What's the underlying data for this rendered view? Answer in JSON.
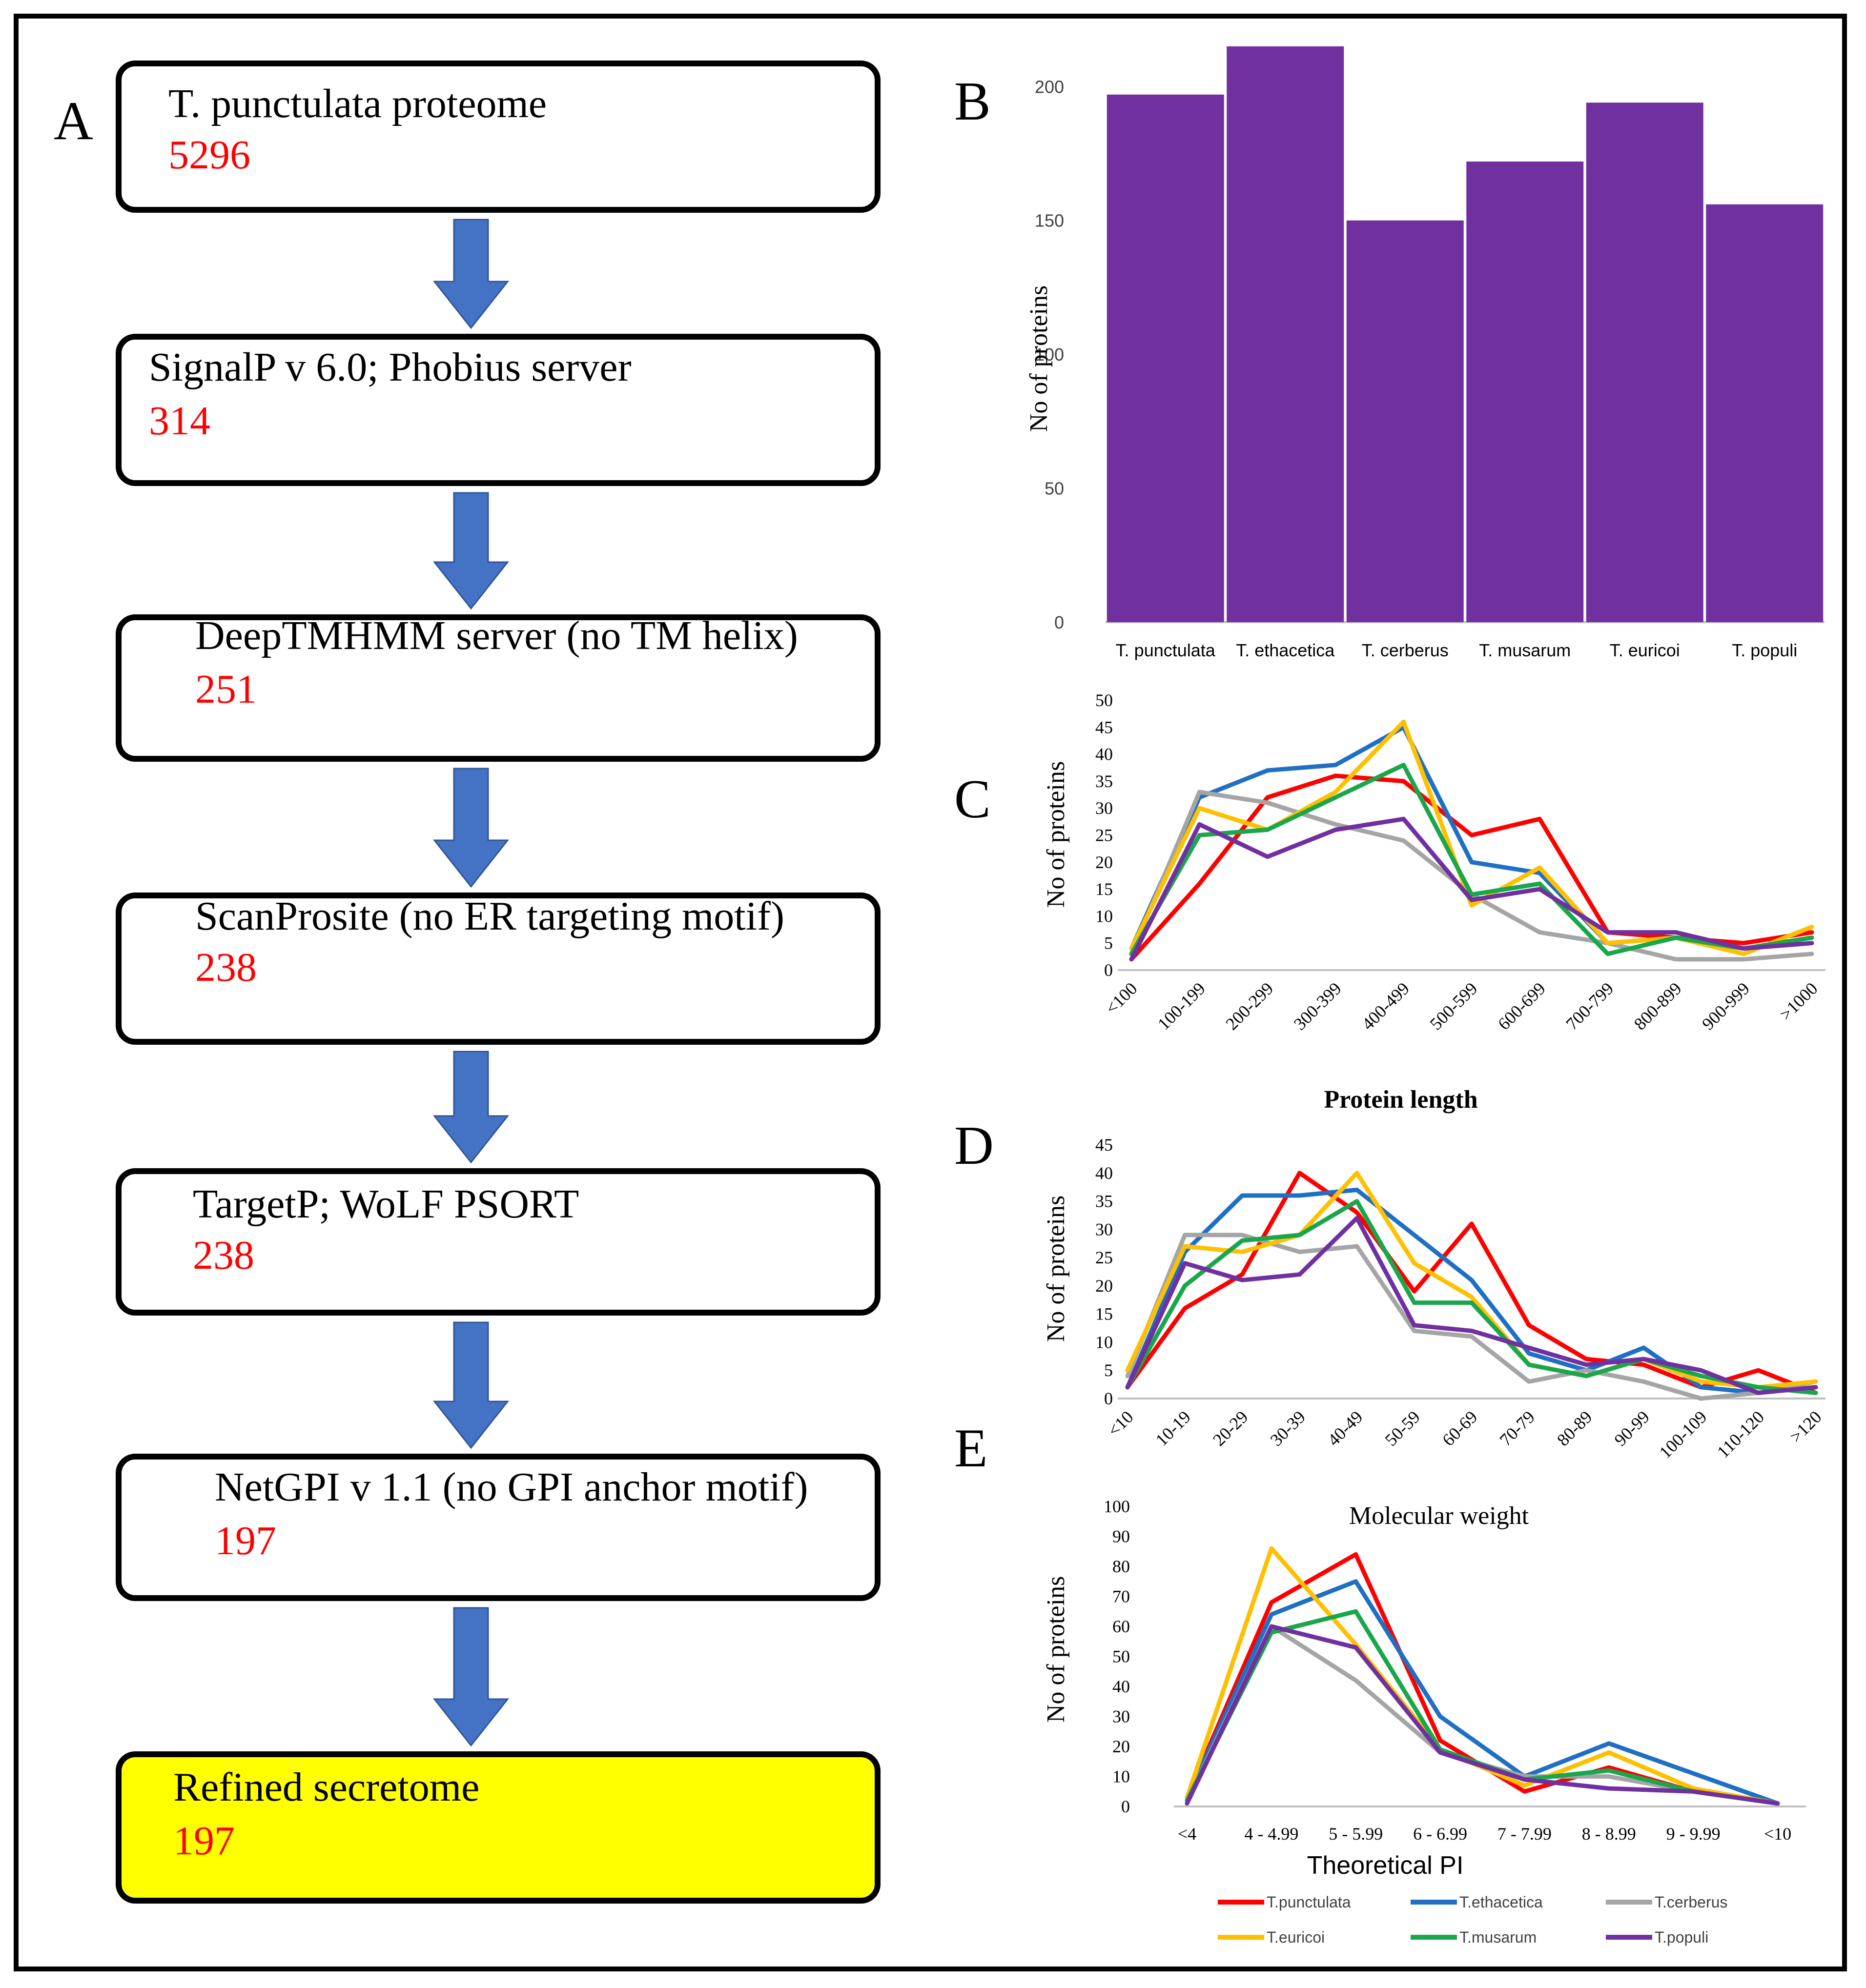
{
  "panel_labels": {
    "a": "A",
    "b": "B",
    "c": "C",
    "d": "D",
    "e": "E"
  },
  "flowchart": {
    "steps": [
      {
        "label": "T. punctulata proteome",
        "count": "5296"
      },
      {
        "label": "SignalP v 6.0; Phobius server",
        "count": "314"
      },
      {
        "label": "DeepTMHMM server (no TM helix)",
        "count": "251"
      },
      {
        "label": "ScanProsite (no ER targeting motif)",
        "count": "238"
      },
      {
        "label": "TargetP;  WoLF PSORT",
        "count": "238"
      },
      {
        "label": "NetGPI v 1.1 (no GPI anchor motif)",
        "count": "197"
      },
      {
        "label": "Refined secretome",
        "count": "197"
      }
    ],
    "colors": {
      "count": "#ff0000",
      "arrow": "#4472c4",
      "final_fill": "#ffff00",
      "box_fill": "#ffffff"
    }
  },
  "legend": {
    "items": [
      {
        "name": "T.punctulata",
        "color": "#ff0000"
      },
      {
        "name": "T.ethacetica",
        "color": "#1f6fc5"
      },
      {
        "name": "T.cerberus",
        "color": "#a5a5a5"
      },
      {
        "name": "T.euricoi",
        "color": "#ffc000"
      },
      {
        "name": "T.musarum",
        "color": "#1aa64b"
      },
      {
        "name": "T.populi",
        "color": "#7030a0"
      }
    ]
  },
  "chart_data": [
    {
      "id": "B",
      "type": "bar",
      "title": "",
      "xlabel": "",
      "ylabel": "No of  proteins",
      "categories": [
        "T. punctulata",
        "T. ethacetica",
        "T. cerberus",
        "T. musarum",
        "T. euricoi",
        "T. populi"
      ],
      "values": [
        197,
        215,
        150,
        172,
        194,
        156
      ],
      "yticks": [
        0,
        50,
        100,
        150,
        200
      ],
      "ylim": [
        0,
        215
      ],
      "color": "#7030a0"
    },
    {
      "id": "C",
      "type": "line",
      "title": "",
      "xlabel": "Protein length",
      "ylabel": "No of  proteins",
      "categories": [
        "<100",
        "100-199",
        "200-299",
        "300-399",
        "400-499",
        "500-599",
        "600-699",
        "700-799",
        "800-899",
        "900-999",
        ">1000"
      ],
      "yticks": [
        0,
        5,
        10,
        15,
        20,
        25,
        30,
        35,
        40,
        45,
        50
      ],
      "ylim": [
        0,
        50
      ],
      "series": [
        {
          "name": "T.punctulata",
          "color": "#ff0000",
          "values": [
            2,
            16,
            32,
            36,
            35,
            25,
            28,
            7,
            6,
            5,
            7
          ]
        },
        {
          "name": "T.ethacetica",
          "color": "#1f6fc5",
          "values": [
            4,
            32,
            37,
            38,
            45,
            20,
            18,
            5,
            6,
            4,
            6
          ]
        },
        {
          "name": "T.cerberus",
          "color": "#a5a5a5",
          "values": [
            3,
            33,
            31,
            27,
            24,
            14,
            7,
            5,
            2,
            2,
            3
          ]
        },
        {
          "name": "T.euricoi",
          "color": "#ffc000",
          "values": [
            4,
            30,
            26,
            33,
            46,
            12,
            19,
            5,
            6,
            3,
            8
          ]
        },
        {
          "name": "T.musarum",
          "color": "#1aa64b",
          "values": [
            3,
            25,
            26,
            32,
            38,
            14,
            16,
            3,
            6,
            4,
            6
          ]
        },
        {
          "name": "T.populi",
          "color": "#7030a0",
          "values": [
            2,
            27,
            21,
            26,
            28,
            13,
            15,
            7,
            7,
            4,
            5
          ]
        }
      ]
    },
    {
      "id": "D",
      "type": "line",
      "title": "",
      "xlabel": "Molecular weight",
      "ylabel": "No of  proteins",
      "categories": [
        "<10",
        "10-19",
        "20-29",
        "30-39",
        "40-49",
        "50-59",
        "60-69",
        "70-79",
        "80-89",
        "90-99",
        "100-109",
        "110-120",
        ">120"
      ],
      "yticks": [
        0,
        5,
        10,
        15,
        20,
        25,
        30,
        35,
        40,
        45
      ],
      "ylim": [
        0,
        45
      ],
      "series": [
        {
          "name": "T.punctulata",
          "color": "#ff0000",
          "values": [
            2,
            16,
            22,
            40,
            33,
            19,
            31,
            13,
            7,
            6,
            2,
            5,
            1
          ]
        },
        {
          "name": "T.ethacetica",
          "color": "#1f6fc5",
          "values": [
            2,
            26,
            36,
            36,
            37,
            29,
            21,
            8,
            5,
            9,
            2,
            1,
            2
          ]
        },
        {
          "name": "T.cerberus",
          "color": "#a5a5a5",
          "values": [
            4,
            29,
            29,
            26,
            27,
            12,
            11,
            3,
            5,
            3,
            0,
            1,
            3
          ]
        },
        {
          "name": "T.euricoi",
          "color": "#ffc000",
          "values": [
            5,
            27,
            26,
            29,
            40,
            24,
            18,
            6,
            4,
            7,
            3,
            2,
            3
          ]
        },
        {
          "name": "T.musarum",
          "color": "#1aa64b",
          "values": [
            2,
            20,
            28,
            29,
            35,
            17,
            17,
            6,
            4,
            7,
            4,
            2,
            1
          ]
        },
        {
          "name": "T.populi",
          "color": "#7030a0",
          "values": [
            2,
            24,
            21,
            22,
            32,
            13,
            12,
            9,
            6,
            7,
            5,
            1,
            2
          ]
        }
      ]
    },
    {
      "id": "E",
      "type": "line",
      "title": "",
      "xlabel": "Theoretical PI",
      "ylabel": "No of  proteins",
      "categories": [
        "<4",
        "4 - 4.99",
        "5 - 5.99",
        "6 - 6.99",
        "7 - 7.99",
        "8 - 8.99",
        "9 - 9.99",
        "<10"
      ],
      "yticks": [
        0,
        10,
        20,
        30,
        40,
        50,
        60,
        70,
        80,
        90,
        100
      ],
      "ylim": [
        0,
        100
      ],
      "series": [
        {
          "name": "T.punctulata",
          "color": "#ff0000",
          "values": [
            3,
            68,
            84,
            22,
            5,
            13,
            5,
            1
          ]
        },
        {
          "name": "T.ethacetica",
          "color": "#1f6fc5",
          "values": [
            3,
            64,
            75,
            30,
            10,
            21,
            11,
            1
          ]
        },
        {
          "name": "T.cerberus",
          "color": "#a5a5a5",
          "values": [
            2,
            60,
            42,
            18,
            10,
            10,
            5,
            1
          ]
        },
        {
          "name": "T.euricoi",
          "color": "#ffc000",
          "values": [
            3,
            86,
            54,
            19,
            7,
            18,
            6,
            1
          ]
        },
        {
          "name": "T.musarum",
          "color": "#1aa64b",
          "values": [
            2,
            58,
            65,
            19,
            9,
            12,
            5,
            1
          ]
        },
        {
          "name": "T.populi",
          "color": "#7030a0",
          "values": [
            1,
            60,
            53,
            18,
            9,
            6,
            5,
            1
          ]
        }
      ]
    }
  ]
}
